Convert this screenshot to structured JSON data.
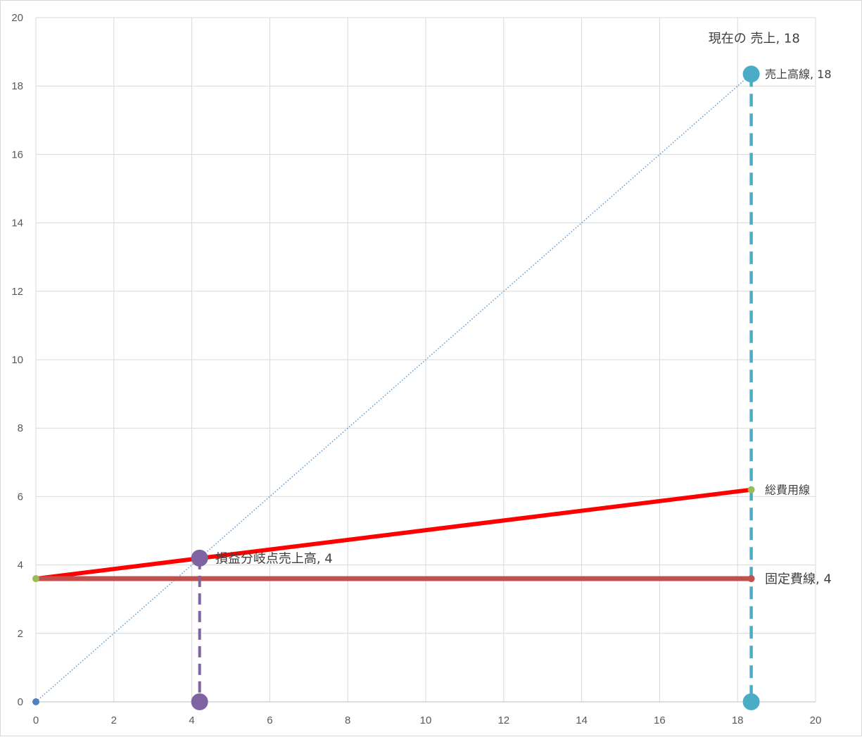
{
  "chart_data": {
    "type": "scatter",
    "xlim": [
      0,
      20
    ],
    "ylim": [
      0,
      20
    ],
    "x_ticks": [
      "0",
      "2",
      "4",
      "6",
      "8",
      "10",
      "12",
      "14",
      "16",
      "18",
      "20"
    ],
    "y_ticks": [
      "0",
      "2",
      "4",
      "6",
      "8",
      "10",
      "12",
      "14",
      "16",
      "18",
      "20"
    ],
    "grid": true,
    "series": [
      {
        "key": "sales_line",
        "x": [
          0,
          18.35
        ],
        "y": [
          0,
          18.35
        ],
        "color": "#5b9bd5",
        "style": "dotted"
      },
      {
        "key": "total_cost",
        "x": [
          0,
          18.35
        ],
        "y": [
          3.6,
          6.2
        ],
        "color": "#ff0000",
        "style": "solid"
      },
      {
        "key": "fixed_cost",
        "x": [
          0,
          18.35
        ],
        "y": [
          3.6,
          3.6
        ],
        "color": "#c0504d",
        "style": "solid"
      },
      {
        "key": "bep_drop",
        "x": [
          4.2,
          4.2
        ],
        "y": [
          4.2,
          0
        ],
        "color": "#8064a2",
        "style": "dashed"
      },
      {
        "key": "current_drop",
        "x": [
          18.35,
          18.35
        ],
        "y": [
          18.35,
          0
        ],
        "color": "#4bacc6",
        "style": "dashed"
      }
    ],
    "points": [
      {
        "key": "origin",
        "x": 0,
        "y": 0,
        "color": "#4f81bd",
        "r": 5
      },
      {
        "key": "tc_start",
        "x": 0,
        "y": 3.6,
        "color": "#9bbb59",
        "r": 5
      },
      {
        "key": "tc_end",
        "x": 18.35,
        "y": 6.2,
        "color": "#9bbb59",
        "r": 5
      },
      {
        "key": "fc_end",
        "x": 18.35,
        "y": 3.6,
        "color": "#c0504d",
        "r": 5
      },
      {
        "key": "bep",
        "x": 4.2,
        "y": 4.2,
        "color": "#8064a2",
        "r": 12
      },
      {
        "key": "bep_base",
        "x": 4.2,
        "y": 0,
        "color": "#8064a2",
        "r": 12
      },
      {
        "key": "sales_point",
        "x": 18.35,
        "y": 18.35,
        "color": "#4bacc6",
        "r": 12
      },
      {
        "key": "sales_base",
        "x": 18.35,
        "y": 0,
        "color": "#4bacc6",
        "r": 12
      }
    ],
    "annotations": [
      {
        "key": "current_sales",
        "text": "現在の 売上, 18",
        "x": 19.6,
        "y": 19.4,
        "anchor": "end",
        "size": 18
      },
      {
        "key": "sales_line_label",
        "text": "売上高線, 18",
        "x": 18.7,
        "y": 18.35,
        "anchor": "start",
        "size": 16
      },
      {
        "key": "total_cost_label",
        "text": "総費用線",
        "x": 18.7,
        "y": 6.2,
        "anchor": "start",
        "size": 16
      },
      {
        "key": "bep_label",
        "text": "損益分岐点売上高, 4",
        "x": 4.6,
        "y": 4.2,
        "anchor": "start",
        "size": 18
      },
      {
        "key": "fixed_cost_label",
        "text": "固定費線, 4",
        "x": 18.7,
        "y": 3.6,
        "anchor": "start",
        "size": 18
      }
    ]
  }
}
